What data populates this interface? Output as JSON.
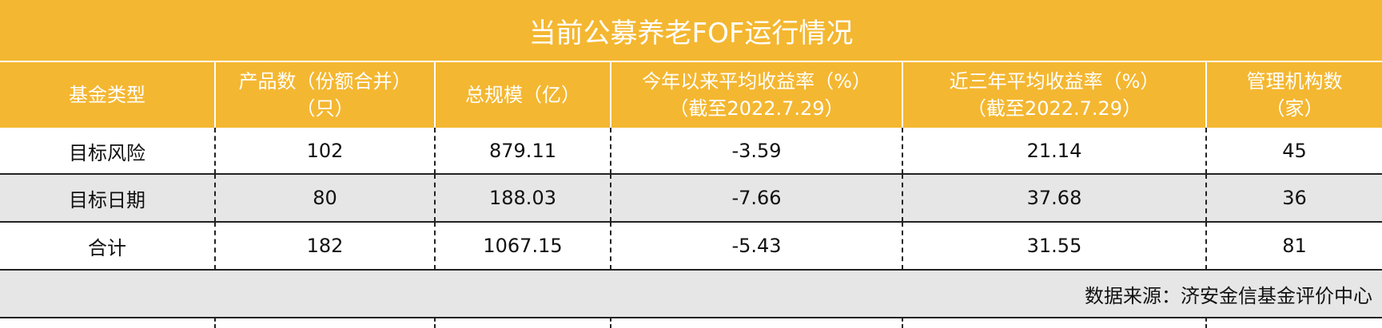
{
  "title": "当前公募养老FOF运行情况",
  "table": {
    "header": [
      [
        "基金类型"
      ],
      [
        "产品数（份额合并）",
        "（只）"
      ],
      [
        "总规模（亿）"
      ],
      [
        "今年以来平均收益率（%）",
        "（截至2022.7.29）"
      ],
      [
        "近三年平均收益率（%）",
        "（截至2022.7.29）"
      ],
      [
        "管理机构数",
        "（家）"
      ]
    ],
    "rows": [
      [
        "目标风险",
        "102",
        "879.11",
        "-3.59",
        "21.14",
        "45"
      ],
      [
        "目标日期",
        "80",
        "188.03",
        "-7.66",
        "37.68",
        "36"
      ],
      [
        "合计",
        "182",
        "1067.15",
        "-5.43",
        "31.55",
        "81"
      ]
    ]
  },
  "source": "数据来源：济安金信基金评价中心"
}
